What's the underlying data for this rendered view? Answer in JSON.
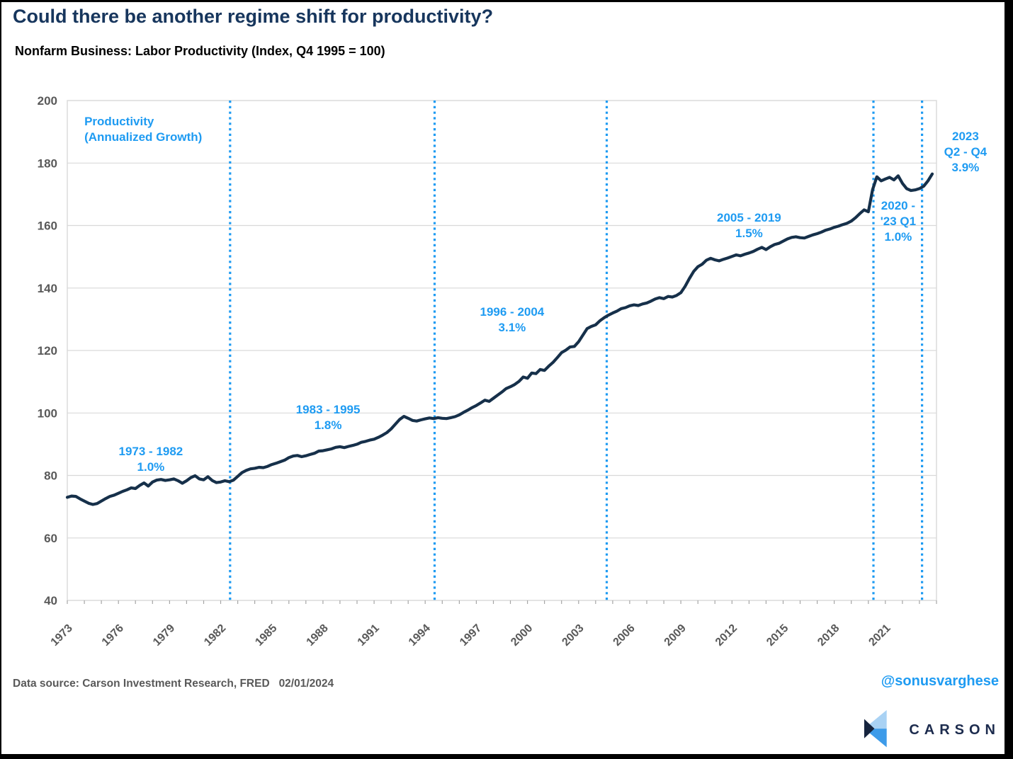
{
  "colors": {
    "accent_blue": "#1E9BF2",
    "line_navy": "#16304A",
    "title_navy": "#17365D",
    "grid": "#D9D9D9",
    "tick": "#A6A6A6",
    "axis_text": "#595959",
    "logo_navy": "#1C2B4D",
    "logo_light_blue": "#A9D2F4",
    "logo_mid_blue": "#3D9BE9",
    "frame": "#000000"
  },
  "footer": {
    "source": "Data source: Carson Investment Research, FRED   02/01/2024",
    "handle": "@sonusvarghese",
    "logo_text": "CARSON"
  },
  "chart_data": {
    "type": "line",
    "title": "Could there be another regime shift for productivity?",
    "subtitle": "Nonfarm Business: Labor Productivity (Index, Q4 1995 = 100)",
    "xlabel": "",
    "ylabel": "",
    "ylim": [
      40,
      200
    ],
    "ytick_step": 20,
    "grid": "horizontal",
    "x_domain": [
      1973,
      2024
    ],
    "x_tick_label_years": [
      1973,
      1976,
      1979,
      1982,
      1985,
      1988,
      1991,
      1994,
      1997,
      2000,
      2003,
      2006,
      2009,
      2012,
      2015,
      2018,
      2021
    ],
    "regime_lines_years": [
      1982.55,
      1994.55,
      2004.65,
      2020.3,
      2023.15
    ],
    "series": [
      {
        "name": "Nonfarm Business Labor Productivity (Index, Q4 1995 = 100)",
        "frequency": "quarterly",
        "start_year": 1973,
        "values": [
          73.0,
          73.4,
          73.3,
          72.5,
          71.8,
          71.1,
          70.7,
          71.0,
          71.8,
          72.6,
          73.3,
          73.7,
          74.3,
          74.9,
          75.4,
          76.0,
          75.8,
          76.8,
          77.6,
          76.6,
          77.9,
          78.5,
          78.7,
          78.4,
          78.6,
          78.9,
          78.3,
          77.5,
          78.3,
          79.3,
          79.9,
          78.9,
          78.6,
          79.6,
          78.4,
          77.7,
          77.9,
          78.3,
          78.0,
          78.5,
          79.7,
          80.9,
          81.6,
          82.1,
          82.3,
          82.6,
          82.5,
          82.9,
          83.5,
          83.9,
          84.4,
          84.9,
          85.7,
          86.2,
          86.4,
          86.0,
          86.3,
          86.7,
          87.1,
          87.8,
          87.9,
          88.2,
          88.5,
          89.0,
          89.2,
          88.9,
          89.3,
          89.6,
          90.0,
          90.6,
          90.9,
          91.3,
          91.6,
          92.2,
          92.9,
          93.7,
          94.9,
          96.4,
          97.9,
          98.9,
          98.3,
          97.6,
          97.4,
          97.8,
          98.1,
          98.4,
          98.2,
          98.5,
          98.3,
          98.2,
          98.5,
          98.8,
          99.4,
          100.2,
          100.9,
          101.7,
          102.4,
          103.2,
          104.1,
          103.7,
          104.7,
          105.7,
          106.7,
          107.8,
          108.4,
          109.1,
          110.1,
          111.5,
          111.1,
          112.8,
          112.6,
          113.9,
          113.6,
          115.0,
          116.2,
          117.7,
          119.3,
          120.1,
          121.1,
          121.3,
          122.8,
          124.9,
          127.0,
          127.7,
          128.2,
          129.5,
          130.5,
          131.3,
          132.0,
          132.6,
          133.4,
          133.7,
          134.3,
          134.6,
          134.4,
          134.9,
          135.2,
          135.8,
          136.5,
          136.9,
          136.6,
          137.3,
          137.1,
          137.6,
          138.5,
          140.5,
          143.0,
          145.3,
          146.8,
          147.6,
          148.9,
          149.5,
          149.0,
          148.7,
          149.2,
          149.6,
          150.1,
          150.6,
          150.3,
          150.8,
          151.2,
          151.7,
          152.4,
          153.0,
          152.3,
          153.2,
          153.9,
          154.3,
          155.0,
          155.7,
          156.2,
          156.4,
          156.1,
          156.0,
          156.5,
          157.0,
          157.4,
          157.9,
          158.5,
          158.9,
          159.4,
          159.8,
          160.3,
          160.7,
          161.4,
          162.5,
          163.8,
          165.0,
          164.4,
          171.5,
          175.6,
          174.3,
          174.9,
          175.4,
          174.6,
          175.9,
          173.5,
          171.8,
          171.2,
          171.4,
          171.8,
          172.6,
          174.3,
          176.5
        ]
      }
    ],
    "annotations": [
      {
        "id": "legend",
        "lines": [
          "Productivity",
          "(Annualized Growth)"
        ],
        "year": 1974.0,
        "value": 193.4,
        "align": "start"
      },
      {
        "id": "regime-1973-1982",
        "lines": [
          "1973 - 1982",
          "1.0%"
        ],
        "year": 1977.9,
        "value": 87.8,
        "align": "middle"
      },
      {
        "id": "regime-1983-1995",
        "lines": [
          "1983 - 1995",
          "1.8%"
        ],
        "year": 1988.3,
        "value": 101.2,
        "align": "middle"
      },
      {
        "id": "regime-1996-2004",
        "lines": [
          "1996 - 2004",
          "3.1%"
        ],
        "year": 1999.1,
        "value": 132.5,
        "align": "middle"
      },
      {
        "id": "regime-2005-2019",
        "lines": [
          "2005 - 2019",
          "1.5%"
        ],
        "year": 2013.0,
        "value": 162.6,
        "align": "middle"
      },
      {
        "id": "regime-2020-23q1",
        "lines": [
          "2020 -",
          "'23 Q1",
          "1.0%"
        ],
        "year": 2021.75,
        "value": 166.5,
        "align": "middle"
      },
      {
        "id": "regime-2023-q2q4",
        "lines": [
          "2023",
          "Q2 - Q4",
          "3.9%"
        ],
        "year": 2025.7,
        "value": 188.7,
        "align": "middle"
      }
    ]
  }
}
